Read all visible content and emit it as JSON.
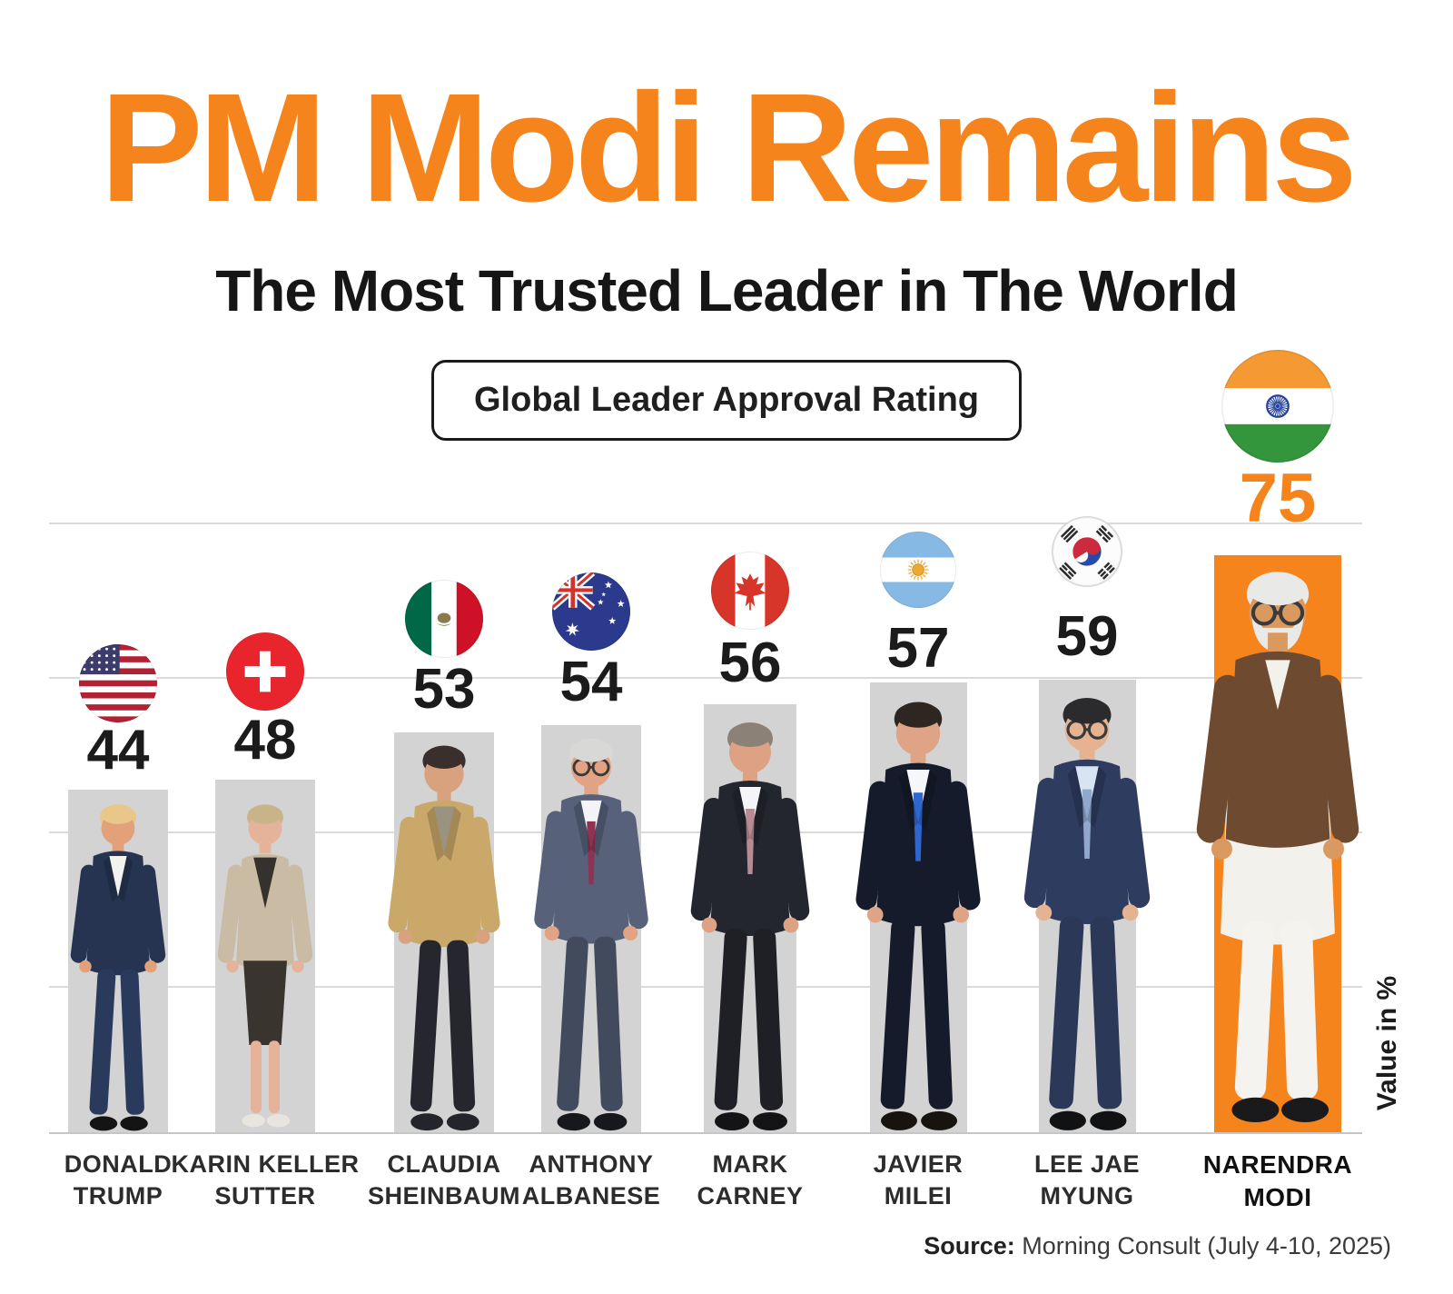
{
  "header": {
    "title": "PM Modi Remains",
    "subtitle": "The Most Trusted Leader in The World",
    "badge_label": "Global Leader Approval Rating"
  },
  "chart": {
    "value_axis_label": "Value in %"
  },
  "footer": {
    "source_label": "Source:",
    "source_text": " Morning Consult (July 4-10, 2025)"
  },
  "colors": {
    "accent_orange": "#F6841C",
    "bar_gray": "#D3D3D3",
    "gridline": "#DADADA",
    "text_dark": "#1C1C1C"
  },
  "chart_data": {
    "type": "bar",
    "title": "Global Leader Approval Rating",
    "ylabel": "Value in %",
    "categories": [
      "Donald Trump",
      "Karin Keller Sutter",
      "Claudia Sheinbaum",
      "Anthony Albanese",
      "Mark Carney",
      "Javier Milei",
      "Lee Jae Myung",
      "Narendra Modi"
    ],
    "values": [
      44,
      48,
      53,
      54,
      56,
      57,
      59,
      75
    ],
    "countries": [
      "United States",
      "Switzerland",
      "Mexico",
      "Australia",
      "Canada",
      "Argentina",
      "South Korea",
      "India"
    ],
    "bar_colors": [
      "#D3D3D3",
      "#D3D3D3",
      "#D3D3D3",
      "#D3D3D3",
      "#D3D3D3",
      "#D3D3D3",
      "#D3D3D3",
      "#F6841C"
    ],
    "highlighted_category": "Narendra Modi",
    "value_labels_shown": true,
    "grid": true,
    "source": "Morning Consult (July 4-10, 2025)"
  },
  "leaders": [
    {
      "id": "donald-trump",
      "name_lines": [
        "DONALD",
        "TRUMP"
      ],
      "value": 44,
      "flag": "usa",
      "country": "United States",
      "highlight": false,
      "figure": {
        "hair": "#E9C689",
        "skin": "#E3A179",
        "jacket": "#263452",
        "shirt": "#F2F2F0",
        "tie": "",
        "pants": "#2A3A5C",
        "shoes": "#141414",
        "style": "suit",
        "glasses": false,
        "beard": false
      }
    },
    {
      "id": "karin-keller-sutter",
      "name_lines": [
        "KARIN KELLER",
        "SUTTER"
      ],
      "value": 48,
      "flag": "switzerland",
      "country": "Switzerland",
      "highlight": false,
      "figure": {
        "hair": "#C9B48A",
        "skin": "#E5B39A",
        "jacket": "#C9BBA4",
        "shirt": "#35322E",
        "tie": "",
        "pants": "#39352E",
        "shoes": "#E8E4DE",
        "style": "dress",
        "glasses": false,
        "beard": false
      }
    },
    {
      "id": "claudia-sheinbaum",
      "name_lines": [
        "CLAUDIA",
        "SHEINBAUM"
      ],
      "value": 53,
      "flag": "mexico",
      "country": "Mexico",
      "highlight": false,
      "figure": {
        "hair": "#3A2F2C",
        "skin": "#D9A27E",
        "jacket": "#C9A869",
        "shirt": "#9A937F",
        "tie": "",
        "pants": "#26272E",
        "shoes": "#23252B",
        "style": "suit",
        "glasses": false,
        "beard": false
      }
    },
    {
      "id": "anthony-albanese",
      "name_lines": [
        "ANTHONY",
        "ALBANESE"
      ],
      "value": 54,
      "flag": "australia",
      "country": "Australia",
      "highlight": false,
      "figure": {
        "hair": "#D8D8D6",
        "skin": "#E2A384",
        "jacket": "#57617A",
        "shirt": "#F4F4F6",
        "tie": "#8F3352",
        "pants": "#424A5E",
        "shoes": "#16181C",
        "style": "suit",
        "glasses": true,
        "beard": false
      }
    },
    {
      "id": "mark-carney",
      "name_lines": [
        "MARK",
        "CARNEY"
      ],
      "value": 56,
      "flag": "canada",
      "country": "Canada",
      "highlight": false,
      "figure": {
        "hair": "#8B8177",
        "skin": "#DDA183",
        "jacket": "#23262F",
        "shirt": "#F5F5F7",
        "tie": "#B88A94",
        "pants": "#1E2026",
        "shoes": "#141417",
        "style": "suit",
        "glasses": false,
        "beard": false
      }
    },
    {
      "id": "javier-milei",
      "name_lines": [
        "JAVIER",
        "MILEI"
      ],
      "value": 57,
      "flag": "argentina",
      "country": "Argentina",
      "highlight": false,
      "figure": {
        "hair": "#2E2620",
        "skin": "#DFA486",
        "jacket": "#151B2B",
        "shirt": "#F6F7FA",
        "tie": "#2E66CE",
        "pants": "#151B2B",
        "shoes": "#17130F",
        "style": "suit",
        "glasses": false,
        "beard": false
      }
    },
    {
      "id": "lee-jae-myung",
      "name_lines": [
        "LEE JAE",
        "MYUNG"
      ],
      "value": 59,
      "flag": "south_korea",
      "country": "South Korea",
      "highlight": false,
      "figure": {
        "hair": "#2B2B2E",
        "skin": "#E6B392",
        "jacket": "#2E3C60",
        "shirt": "#D8E4F2",
        "tie": "#8FA8CC",
        "pants": "#2B3858",
        "shoes": "#111214",
        "style": "suit",
        "glasses": true,
        "beard": false
      }
    },
    {
      "id": "narendra-modi",
      "name_lines": [
        "NARENDRA",
        "MODI"
      ],
      "value": 75,
      "flag": "india",
      "country": "India",
      "highlight": true,
      "figure": {
        "hair": "#E9E9E7",
        "skin": "#D9995F",
        "jacket": "#6E4A30",
        "shirt": "#F3F1EC",
        "tie": "",
        "pants": "#F5F3EF",
        "shoes": "#1A1A1C",
        "style": "kurta",
        "glasses": true,
        "beard": true
      }
    }
  ]
}
